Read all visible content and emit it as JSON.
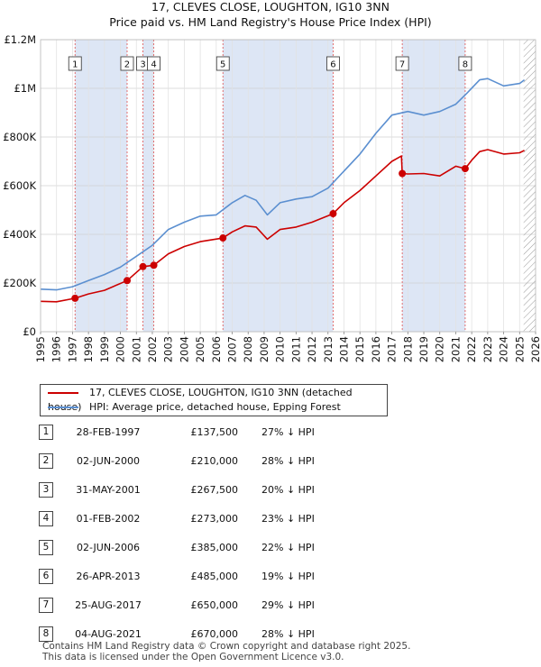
{
  "title": "17, CLEVES CLOSE, LOUGHTON, IG10 3NN",
  "subtitle": "Price paid vs. HM Land Registry's House Price Index (HPI)",
  "colors": {
    "property": "#cc0000",
    "hpi": "#5b8fd0",
    "shade": "#dde6f5",
    "marker": "#cc0000"
  },
  "chart_data": {
    "type": "line",
    "xlim": [
      1995,
      2026
    ],
    "ylim": [
      0,
      1200000
    ],
    "y_ticks": [
      0,
      200000,
      400000,
      600000,
      800000,
      1000000,
      1200000
    ],
    "y_tick_labels": [
      "£0",
      "£200K",
      "£400K",
      "£600K",
      "£800K",
      "£1M",
      "£1.2M"
    ],
    "x_ticks": [
      1995,
      1996,
      1997,
      1998,
      1999,
      2000,
      2001,
      2002,
      2003,
      2004,
      2005,
      2006,
      2007,
      2008,
      2009,
      2010,
      2011,
      2012,
      2013,
      2014,
      2015,
      2016,
      2017,
      2018,
      2019,
      2020,
      2021,
      2022,
      2023,
      2024,
      2025,
      2026
    ],
    "x_tick_labels": [
      "1995",
      "1996",
      "1997",
      "1998",
      "1999",
      "2000",
      "2001",
      "2002",
      "2003",
      "2004",
      "2005",
      "2006",
      "2007",
      "2008",
      "2009",
      "2010",
      "2011",
      "2012",
      "2013",
      "2014",
      "2015",
      "2016",
      "2017",
      "2018",
      "2019",
      "2020",
      "2021",
      "2022",
      "2023",
      "2024",
      "2025",
      "2026"
    ],
    "shaded_spans": [
      [
        1997.16,
        2000.42
      ],
      [
        2001.41,
        2002.09
      ],
      [
        2006.42,
        2013.32
      ],
      [
        2017.65,
        2021.59
      ]
    ],
    "hatched_from": 2025.25,
    "series": [
      {
        "name": "HPI: Average price, detached house, Epping Forest",
        "x": [
          1995,
          1996,
          1997,
          1998,
          1999,
          2000,
          2001,
          2002,
          2003,
          2004,
          2005,
          2006,
          2007,
          2007.8,
          2008.5,
          2009.2,
          2010,
          2011,
          2012,
          2013,
          2014,
          2015,
          2016,
          2017,
          2018,
          2019,
          2020,
          2021,
          2021.7,
          2022.5,
          2023,
          2024,
          2025,
          2025.3
        ],
        "y": [
          175000,
          172000,
          185000,
          210000,
          235000,
          265000,
          310000,
          355000,
          420000,
          450000,
          475000,
          480000,
          530000,
          560000,
          540000,
          480000,
          530000,
          545000,
          555000,
          590000,
          660000,
          730000,
          815000,
          890000,
          905000,
          890000,
          905000,
          935000,
          980000,
          1035000,
          1040000,
          1010000,
          1020000,
          1035000
        ]
      },
      {
        "name": "17, CLEVES CLOSE, LOUGHTON, IG10 3NN (detached house)",
        "x": [
          1995,
          1996,
          1997.16,
          1998,
          1999,
          2000.42,
          2001.41,
          2002.09,
          2003,
          2004,
          2005,
          2006.42,
          2007,
          2007.8,
          2008.5,
          2009.2,
          2010,
          2011,
          2012,
          2013.32,
          2014,
          2015,
          2016,
          2017,
          2017.6,
          2017.65,
          2018,
          2019,
          2020,
          2021,
          2021.59,
          2022,
          2022.5,
          2023,
          2024,
          2025,
          2025.3
        ],
        "y": [
          125000,
          123000,
          137500,
          155000,
          170000,
          210000,
          267500,
          273000,
          320000,
          350000,
          370000,
          385000,
          410000,
          435000,
          430000,
          380000,
          420000,
          430000,
          450000,
          485000,
          530000,
          580000,
          640000,
          700000,
          722000,
          650000,
          648000,
          650000,
          640000,
          680000,
          670000,
          705000,
          740000,
          748000,
          730000,
          735000,
          745000
        ]
      }
    ],
    "sales": [
      {
        "label": "1",
        "x": 1997.16,
        "y": 137500
      },
      {
        "label": "2",
        "x": 2000.42,
        "y": 210000
      },
      {
        "label": "3",
        "x": 2001.41,
        "y": 267500
      },
      {
        "label": "4",
        "x": 2002.09,
        "y": 273000
      },
      {
        "label": "5",
        "x": 2006.42,
        "y": 385000
      },
      {
        "label": "6",
        "x": 2013.32,
        "y": 485000
      },
      {
        "label": "7",
        "x": 2017.65,
        "y": 650000
      },
      {
        "label": "8",
        "x": 2021.59,
        "y": 670000
      }
    ]
  },
  "legend": {
    "property_label": "17, CLEVES CLOSE, LOUGHTON, IG10 3NN (detached house)",
    "hpi_label": "HPI: Average price, detached house, Epping Forest"
  },
  "transactions": [
    {
      "num": "1",
      "date": "28-FEB-1997",
      "price": "£137,500",
      "hpi": "27% ↓ HPI"
    },
    {
      "num": "2",
      "date": "02-JUN-2000",
      "price": "£210,000",
      "hpi": "28% ↓ HPI"
    },
    {
      "num": "3",
      "date": "31-MAY-2001",
      "price": "£267,500",
      "hpi": "20% ↓ HPI"
    },
    {
      "num": "4",
      "date": "01-FEB-2002",
      "price": "£273,000",
      "hpi": "23% ↓ HPI"
    },
    {
      "num": "5",
      "date": "02-JUN-2006",
      "price": "£385,000",
      "hpi": "22% ↓ HPI"
    },
    {
      "num": "6",
      "date": "26-APR-2013",
      "price": "£485,000",
      "hpi": "19% ↓ HPI"
    },
    {
      "num": "7",
      "date": "25-AUG-2017",
      "price": "£650,000",
      "hpi": "29% ↓ HPI"
    },
    {
      "num": "8",
      "date": "04-AUG-2021",
      "price": "£670,000",
      "hpi": "28% ↓ HPI"
    }
  ],
  "footer": {
    "line1": "Contains HM Land Registry data © Crown copyright and database right 2025.",
    "line2": "This data is licensed under the Open Government Licence v3.0."
  }
}
